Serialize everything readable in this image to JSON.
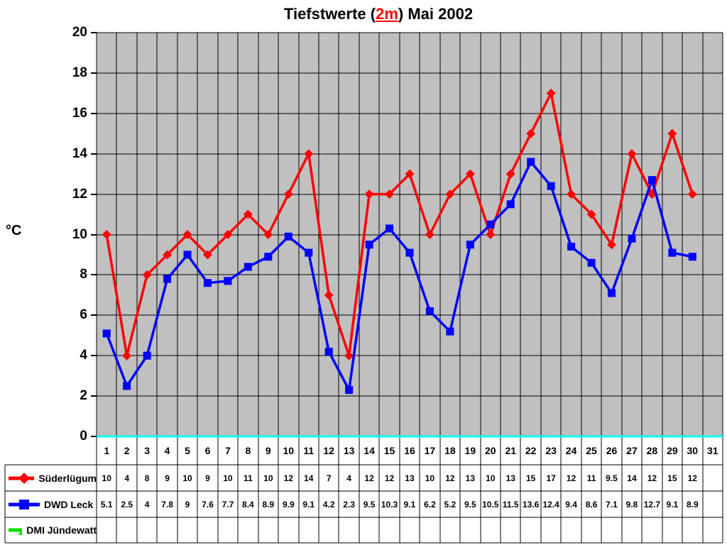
{
  "title": {
    "prefix": "Tiefstwerte (",
    "highlight": "2m",
    "suffix": ") Mai 2002"
  },
  "colors": {
    "title_highlight": "#ff0000",
    "plot_background": "#c0c0c0",
    "gridline": "#000000",
    "axis_zero_line": "#00ffff",
    "series_suederluegum": "#ff0000",
    "series_dwd_leck": "#0000ff",
    "series_dmi_juendewatt": "#00dd00"
  },
  "chart_data": {
    "type": "line",
    "title": "Tiefstwerte (2m) Mai 2002",
    "xlabel": "",
    "ylabel": "°C",
    "ylim": [
      0,
      20
    ],
    "ytick_step": 2,
    "grid": true,
    "plot_background": "#c0c0c0",
    "legend_position": "bottom-left-table",
    "categories": [
      1,
      2,
      3,
      4,
      5,
      6,
      7,
      8,
      9,
      10,
      11,
      12,
      13,
      14,
      15,
      16,
      17,
      18,
      19,
      20,
      21,
      22,
      23,
      24,
      25,
      26,
      27,
      28,
      29,
      30,
      31
    ],
    "series": [
      {
        "name": "Süderlügum",
        "color": "#ff0000",
        "marker": "diamond",
        "values": [
          10,
          4,
          8,
          9,
          10,
          9,
          10,
          11,
          10,
          12,
          14,
          7,
          4,
          12,
          12,
          13,
          10,
          12,
          13,
          10,
          13,
          15,
          17,
          12,
          11,
          9.5,
          14,
          12,
          15,
          12,
          null
        ]
      },
      {
        "name": "DWD Leck",
        "color": "#0000ff",
        "marker": "square",
        "values": [
          5.1,
          2.5,
          4,
          7.8,
          9,
          7.6,
          7.7,
          8.4,
          8.9,
          9.9,
          9.1,
          4.2,
          2.3,
          9.5,
          10.3,
          9.1,
          6.2,
          5.2,
          9.5,
          10.5,
          11.5,
          13.6,
          12.4,
          9.4,
          8.6,
          7.1,
          9.8,
          12.7,
          9.1,
          8.9,
          null
        ]
      },
      {
        "name": "DMI Jündewatt",
        "color": "#00dd00",
        "marker": "triangle",
        "values": [
          null,
          null,
          null,
          null,
          null,
          null,
          null,
          null,
          null,
          null,
          null,
          null,
          null,
          null,
          null,
          null,
          null,
          null,
          null,
          null,
          null,
          null,
          null,
          null,
          null,
          null,
          null,
          null,
          null,
          null,
          null
        ]
      }
    ]
  }
}
